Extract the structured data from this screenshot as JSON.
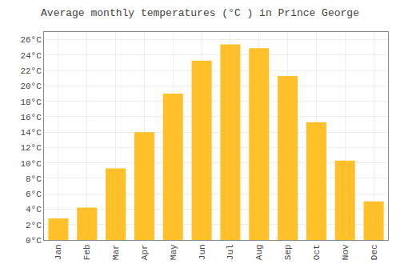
{
  "chart_data": {
    "type": "bar",
    "title": "Average monthly temperatures (°C ) in Prince George",
    "categories": [
      "Jan",
      "Feb",
      "Mar",
      "Apr",
      "May",
      "Jun",
      "Jul",
      "Aug",
      "Sep",
      "Oct",
      "Nov",
      "Dec"
    ],
    "values": [
      2.8,
      4.2,
      9.3,
      14.0,
      19.0,
      23.3,
      25.4,
      24.9,
      21.3,
      15.3,
      10.3,
      5.0
    ],
    "color": "#FFC02A",
    "ylim": [
      0,
      27
    ],
    "yticks": [
      {
        "value": 0,
        "label": "0°C"
      },
      {
        "value": 2,
        "label": "2°C"
      },
      {
        "value": 4,
        "label": "4°C"
      },
      {
        "value": 6,
        "label": "6°C"
      },
      {
        "value": 8,
        "label": "8°C"
      },
      {
        "value": 10,
        "label": "10°C"
      },
      {
        "value": 12,
        "label": "12°C"
      },
      {
        "value": 14,
        "label": "14°C"
      },
      {
        "value": 16,
        "label": "16°C"
      },
      {
        "value": 18,
        "label": "18°C"
      },
      {
        "value": 20,
        "label": "20°C"
      },
      {
        "value": 22,
        "label": "22°C"
      },
      {
        "value": 24,
        "label": "24°C"
      },
      {
        "value": 26,
        "label": "26°C"
      }
    ],
    "grid": true
  }
}
